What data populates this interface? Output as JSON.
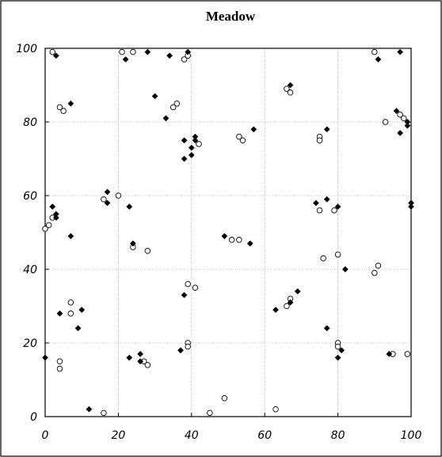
{
  "chart_data": {
    "type": "scatter",
    "title": "Meadow",
    "xlabel": "",
    "ylabel": "",
    "xlim": [
      0,
      100
    ],
    "ylim": [
      0,
      100
    ],
    "x_ticks": [
      0,
      20,
      40,
      60,
      80,
      100
    ],
    "y_ticks": [
      0,
      20,
      40,
      60,
      80,
      100
    ],
    "grid": true,
    "series": [
      {
        "marker": "open-circle",
        "color": "#000000",
        "points": [
          [
            2,
            99
          ],
          [
            4,
            84
          ],
          [
            5,
            83
          ],
          [
            21,
            99
          ],
          [
            24,
            99
          ],
          [
            35,
            84
          ],
          [
            36,
            85
          ],
          [
            38,
            97
          ],
          [
            39,
            98
          ],
          [
            42,
            74
          ],
          [
            53,
            76
          ],
          [
            54,
            75
          ],
          [
            66,
            89
          ],
          [
            67,
            88
          ],
          [
            75,
            76
          ],
          [
            75,
            75
          ],
          [
            90,
            99
          ],
          [
            93,
            80
          ],
          [
            97,
            82
          ],
          [
            98,
            81
          ],
          [
            0,
            51
          ],
          [
            1,
            52
          ],
          [
            2,
            54
          ],
          [
            16,
            59
          ],
          [
            20,
            60
          ],
          [
            24,
            46
          ],
          [
            28,
            45
          ],
          [
            51,
            48
          ],
          [
            53,
            48
          ],
          [
            75,
            56
          ],
          [
            76,
            43
          ],
          [
            79,
            56
          ],
          [
            80,
            44
          ],
          [
            90,
            39
          ],
          [
            91,
            41
          ],
          [
            39,
            36
          ],
          [
            41,
            35
          ],
          [
            7,
            31
          ],
          [
            7,
            28
          ],
          [
            4,
            15
          ],
          [
            4,
            13
          ],
          [
            27,
            15
          ],
          [
            28,
            14
          ],
          [
            39,
            20
          ],
          [
            39,
            19
          ],
          [
            66,
            30
          ],
          [
            67,
            32
          ],
          [
            80,
            20
          ],
          [
            80,
            19
          ],
          [
            95,
            17
          ],
          [
            99,
            17
          ],
          [
            16,
            1
          ],
          [
            45,
            1
          ],
          [
            49,
            5
          ],
          [
            63,
            2
          ]
        ]
      },
      {
        "marker": "filled-diamond",
        "color": "#000000",
        "points": [
          [
            3,
            98
          ],
          [
            7,
            85
          ],
          [
            22,
            97
          ],
          [
            28,
            99
          ],
          [
            30,
            87
          ],
          [
            34,
            98
          ],
          [
            39,
            99
          ],
          [
            33,
            81
          ],
          [
            38,
            75
          ],
          [
            38,
            70
          ],
          [
            40,
            71
          ],
          [
            40,
            73
          ],
          [
            41,
            75
          ],
          [
            41,
            76
          ],
          [
            57,
            78
          ],
          [
            67,
            90
          ],
          [
            77,
            78
          ],
          [
            91,
            97
          ],
          [
            96,
            83
          ],
          [
            97,
            77
          ],
          [
            97,
            99
          ],
          [
            99,
            80
          ],
          [
            99,
            79
          ],
          [
            2,
            57
          ],
          [
            3,
            55
          ],
          [
            3,
            54
          ],
          [
            7,
            49
          ],
          [
            17,
            61
          ],
          [
            17,
            58
          ],
          [
            23,
            57
          ],
          [
            24,
            47
          ],
          [
            38,
            33
          ],
          [
            49,
            49
          ],
          [
            56,
            47
          ],
          [
            74,
            58
          ],
          [
            77,
            59
          ],
          [
            80,
            57
          ],
          [
            82,
            40
          ],
          [
            100,
            58
          ],
          [
            100,
            57
          ],
          [
            4,
            28
          ],
          [
            9,
            24
          ],
          [
            10,
            29
          ],
          [
            23,
            16
          ],
          [
            26,
            17
          ],
          [
            26,
            15
          ],
          [
            37,
            18
          ],
          [
            63,
            29
          ],
          [
            67,
            31
          ],
          [
            69,
            34
          ],
          [
            77,
            24
          ],
          [
            80,
            16
          ],
          [
            81,
            18
          ],
          [
            94,
            17
          ],
          [
            0,
            16
          ],
          [
            12,
            2
          ]
        ]
      }
    ]
  }
}
